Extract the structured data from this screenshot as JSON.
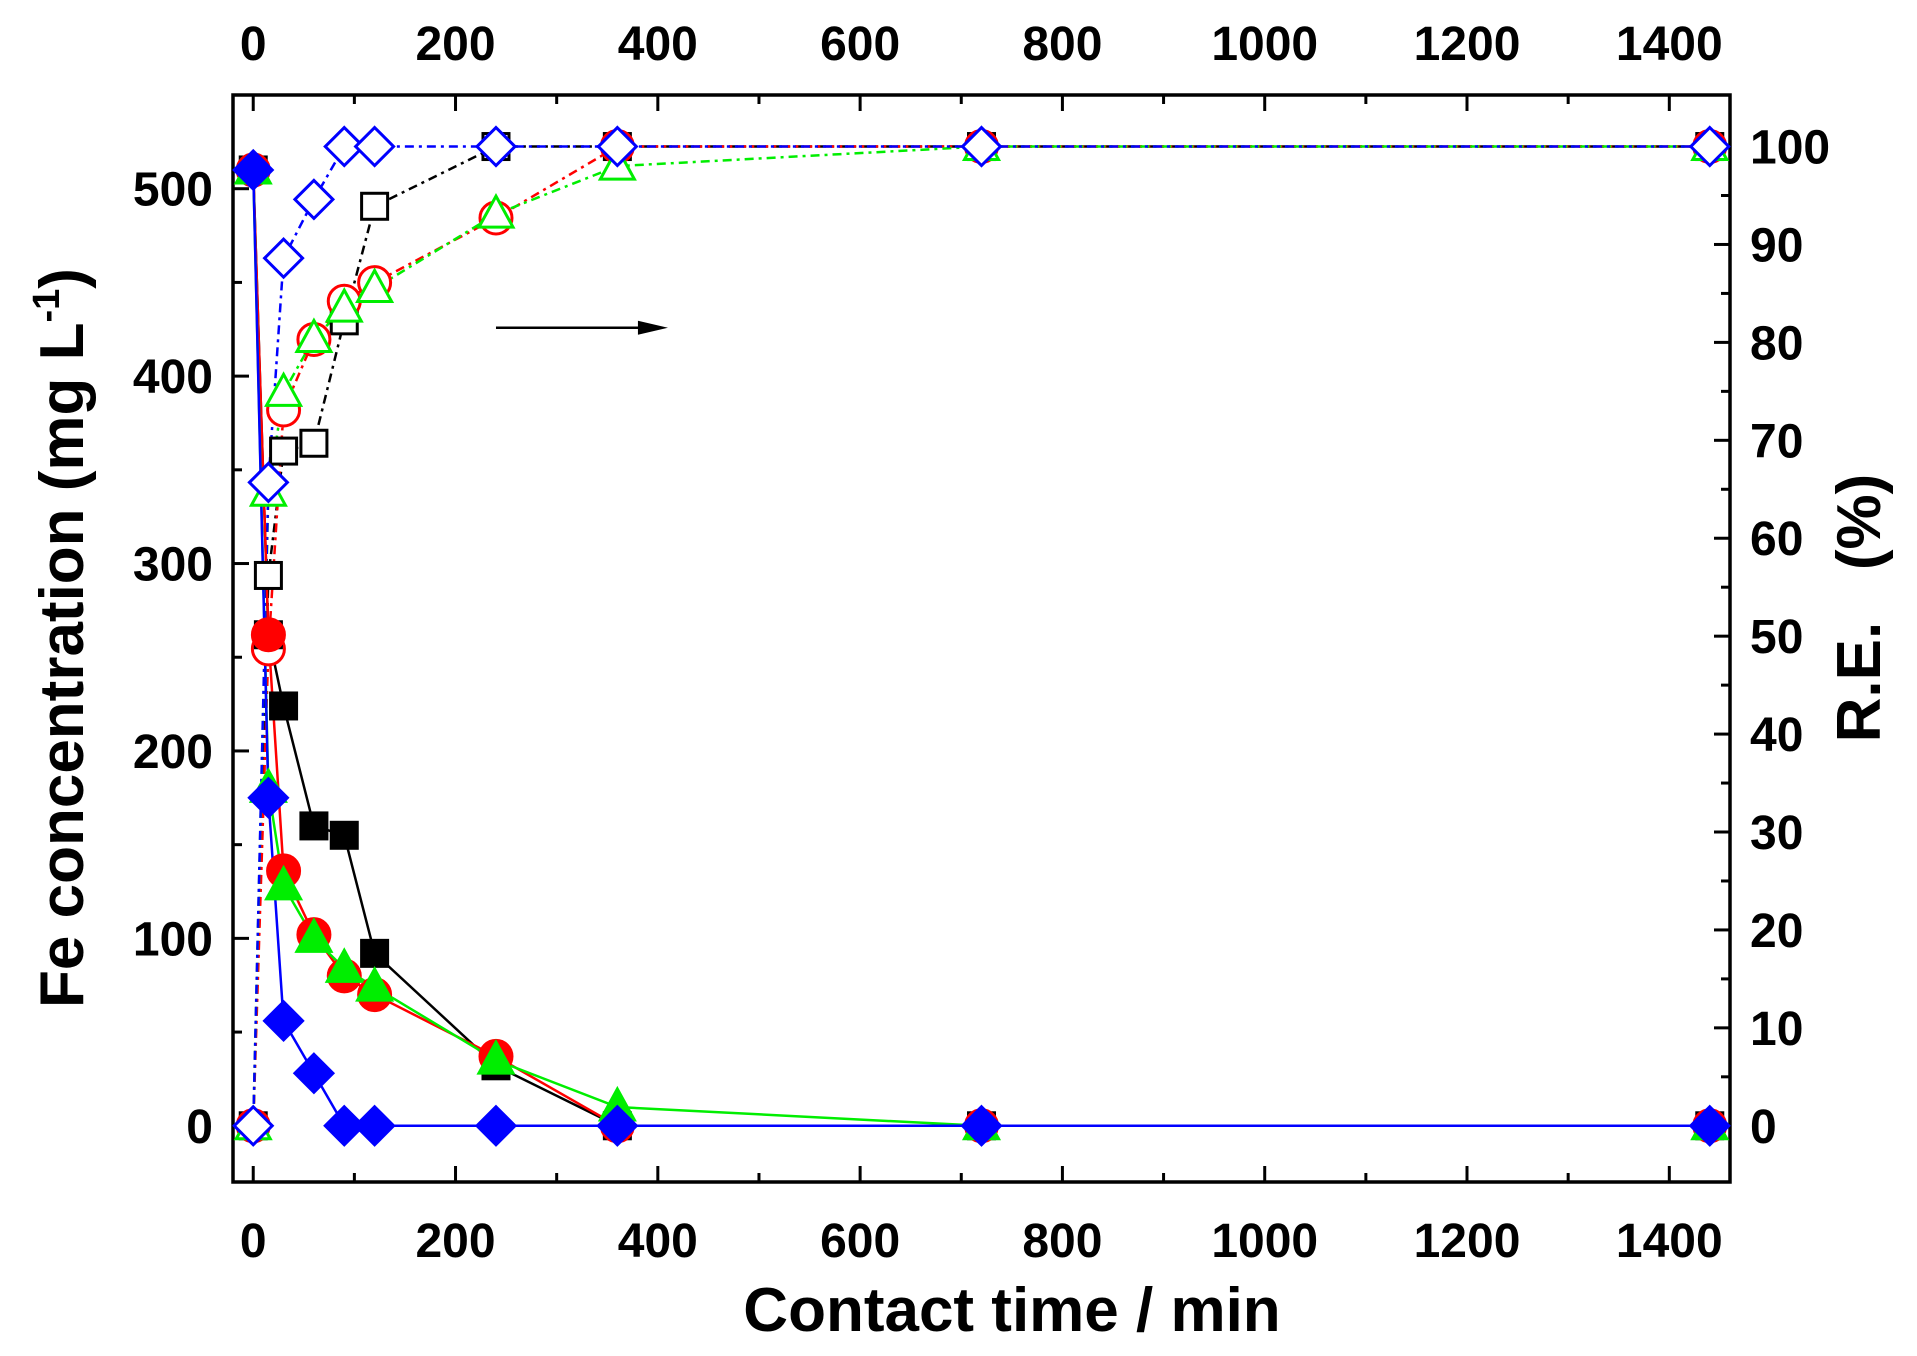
{
  "chart_data": {
    "type": "scatter",
    "xlabel": "Contact time / min",
    "ylabel_left_main": "Fe concentration (mg L",
    "ylabel_left_sup": "-1",
    "ylabel_left_end": ")",
    "ylabel_right": "R.E.   (%)",
    "xlim": [
      -20,
      1460
    ],
    "ylim_left": [
      -30,
      550
    ],
    "ylim_right": [
      -5.7405,
      105.2632
    ],
    "x_ticks": [
      0,
      200,
      400,
      600,
      800,
      1000,
      1200,
      1400
    ],
    "x_tick_labels": [
      "0",
      "200",
      "400",
      "600",
      "800",
      "1000",
      "1200",
      "1400"
    ],
    "top_x_tick_labels": [
      "0",
      "200",
      "400",
      "600",
      "800",
      "1000",
      "1200",
      "1400"
    ],
    "y_left_ticks": [
      0,
      100,
      200,
      300,
      400,
      500
    ],
    "y_left_tick_labels": [
      "0",
      "100",
      "200",
      "300",
      "400",
      "500"
    ],
    "y_right_ticks": [
      0,
      10,
      20,
      30,
      40,
      50,
      60,
      70,
      80,
      90,
      100
    ],
    "y_right_tick_labels": [
      "0",
      "10",
      "20",
      "30",
      "40",
      "50",
      "60",
      "70",
      "80",
      "90",
      "100"
    ],
    "annotation_arrow": {
      "from": [
        240,
        81.5
      ],
      "to": [
        410,
        81.5
      ],
      "axis": "right",
      "meaning": "open symbols refer to right axis"
    },
    "series": [
      {
        "name": "concentration-square",
        "axis": "left",
        "symbol": "square",
        "filled": true,
        "color": "#000000",
        "line": "solid",
        "x": [
          0,
          15,
          30,
          60,
          90,
          120,
          240,
          360,
          720,
          1440
        ],
        "y": [
          510,
          262,
          224,
          160,
          155,
          92,
          32,
          0,
          0,
          0
        ]
      },
      {
        "name": "concentration-circle",
        "axis": "left",
        "symbol": "circle",
        "filled": true,
        "color": "#ff0000",
        "line": "solid",
        "x": [
          0,
          15,
          30,
          60,
          90,
          120,
          240,
          360,
          720,
          1440
        ],
        "y": [
          510,
          262,
          136,
          102,
          80,
          70,
          37,
          0,
          0,
          0
        ]
      },
      {
        "name": "concentration-triangle",
        "axis": "left",
        "symbol": "triangle",
        "filled": true,
        "color": "#00ee00",
        "line": "solid",
        "x": [
          0,
          15,
          30,
          60,
          90,
          120,
          240,
          360,
          720,
          1440
        ],
        "y": [
          510,
          180,
          128,
          100,
          84,
          74,
          35,
          10,
          0,
          0
        ]
      },
      {
        "name": "concentration-diamond",
        "axis": "left",
        "symbol": "diamond",
        "filled": true,
        "color": "#0000ff",
        "line": "solid",
        "x": [
          0,
          15,
          30,
          60,
          90,
          120,
          240,
          360,
          720,
          1440
        ],
        "y": [
          510,
          175,
          56,
          28,
          0,
          0,
          0,
          0,
          0,
          0
        ]
      },
      {
        "name": "removal-square",
        "axis": "right",
        "symbol": "square",
        "filled": false,
        "color": "#000000",
        "line": "dash-dot",
        "x": [
          0,
          15,
          30,
          60,
          90,
          120,
          240,
          360,
          720,
          1440
        ],
        "y": [
          0,
          56.2,
          68.9,
          69.7,
          82.2,
          93.9,
          100,
          100,
          100,
          100
        ]
      },
      {
        "name": "removal-circle",
        "axis": "right",
        "symbol": "circle",
        "filled": false,
        "color": "#ff0000",
        "line": "dash-dot",
        "x": [
          0,
          15,
          30,
          60,
          90,
          120,
          240,
          360,
          720,
          1440
        ],
        "y": [
          0,
          48.7,
          73.1,
          80.3,
          84.2,
          86.1,
          92.7,
          100,
          100,
          100
        ]
      },
      {
        "name": "removal-triangle",
        "axis": "right",
        "symbol": "triangle",
        "filled": false,
        "color": "#00ee00",
        "line": "dash-dot",
        "x": [
          0,
          15,
          30,
          60,
          90,
          120,
          240,
          360,
          720,
          1440
        ],
        "y": [
          0,
          64.7,
          74.9,
          80.4,
          83.5,
          85.5,
          93.1,
          98.0,
          100,
          100
        ]
      },
      {
        "name": "removal-diamond",
        "axis": "right",
        "symbol": "diamond",
        "filled": false,
        "color": "#0000ff",
        "line": "dash-dot",
        "x": [
          0,
          15,
          30,
          60,
          90,
          120,
          240,
          360,
          720,
          1440
        ],
        "y": [
          0,
          65.7,
          88.6,
          94.6,
          100,
          100,
          100,
          100,
          100,
          100
        ]
      }
    ]
  }
}
